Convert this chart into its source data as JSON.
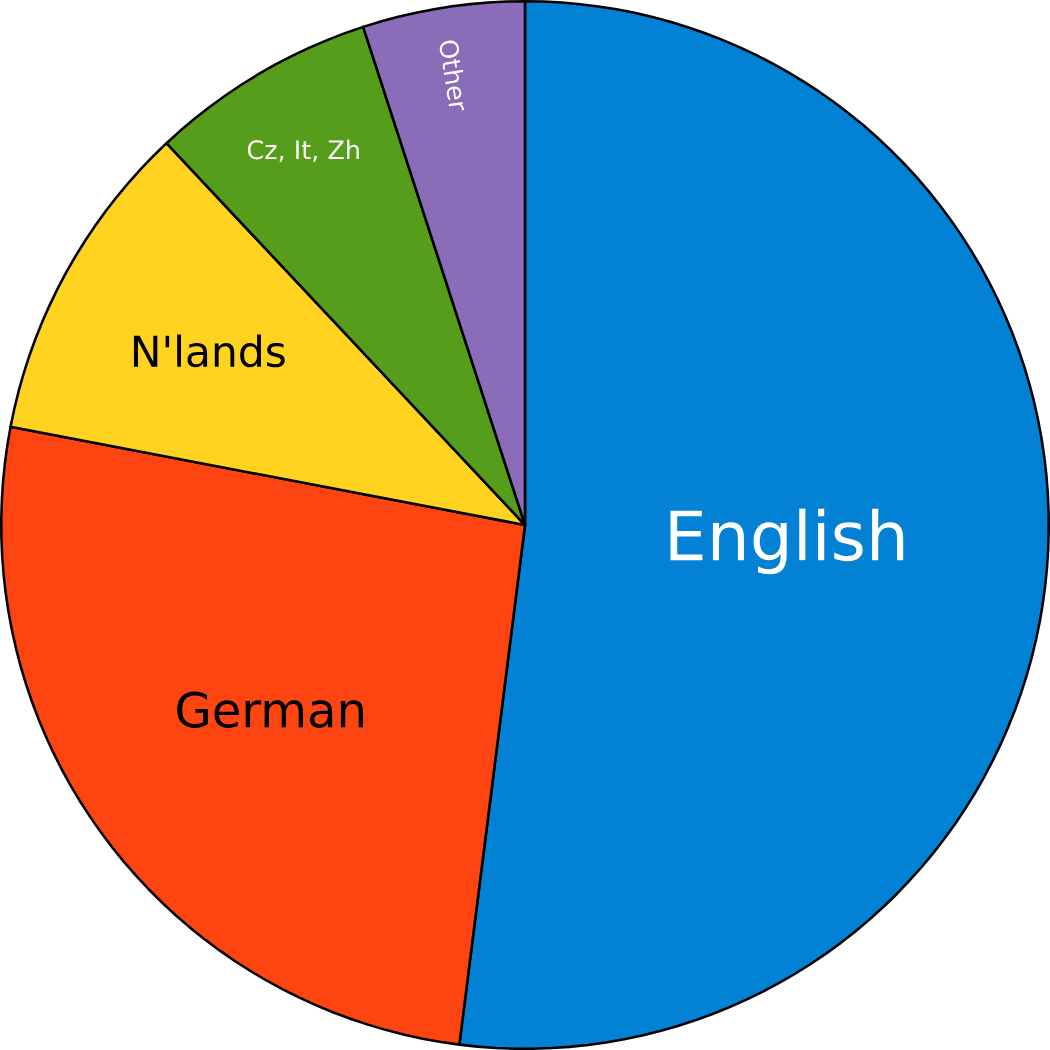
{
  "chart_data": {
    "type": "pie",
    "categories": [
      "English",
      "German",
      "N'lands",
      "Cz, It, Zh",
      "Other"
    ],
    "values": [
      52,
      26,
      10,
      7,
      5
    ],
    "colors": [
      "#0382d5",
      "#fe4410",
      "#ffd320",
      "#579d1c",
      "#8b6cb8"
    ]
  }
}
